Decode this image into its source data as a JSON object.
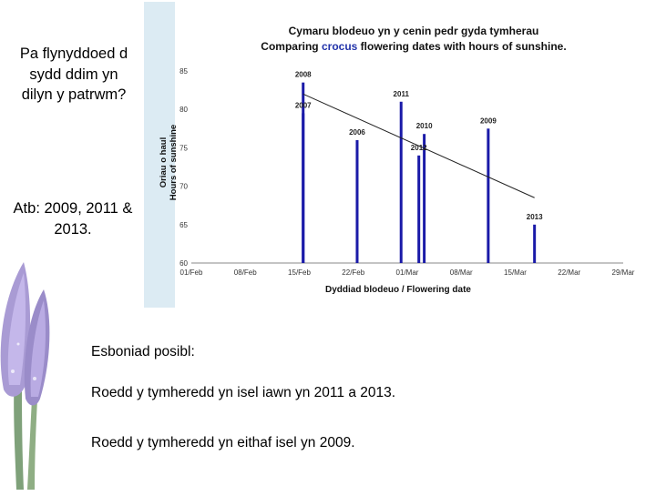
{
  "slide": {
    "question": "Pa flynyddoed d sydd ddim yn dilyn y patrwm?",
    "answer": "Atb: 2009, 2011 & 2013.",
    "explanation_heading": "Esboniad posibl:",
    "explanation_1": "Roedd y tymheredd yn isel iawn yn 2011 a 2013.",
    "explanation_2": "Roedd y tymheredd yn eithaf isel yn 2009."
  },
  "chart_title": {
    "welsh": "Cymaru blodeuo yn y cenin pedr gyda tymherau",
    "english_before": "Comparing ",
    "english_accent": "crocus",
    "english_after": " flowering dates with hours of sunshine."
  },
  "chart_data": {
    "type": "bar",
    "title": "Comparing crocus flowering dates with hours of sunshine.",
    "ylabel": "Oriau o haul Hours of sunshine",
    "ylabel_welsh": "Oriau o haul",
    "ylabel_english": "Hours of sunshine",
    "xlabel": "Dyddiad blodeuo / Flowering date",
    "ylim": [
      60,
      85
    ],
    "yticks": [
      60,
      65,
      70,
      75,
      80,
      85
    ],
    "xlim": [
      0,
      56
    ],
    "xticks": [
      {
        "day": 0,
        "label": "01/Feb"
      },
      {
        "day": 7,
        "label": "08/Feb"
      },
      {
        "day": 14,
        "label": "15/Feb"
      },
      {
        "day": 21,
        "label": "22/Feb"
      },
      {
        "day": 28,
        "label": "01/Mar"
      },
      {
        "day": 35,
        "label": "08/Mar"
      },
      {
        "day": 42,
        "label": "15/Mar"
      },
      {
        "day": 49,
        "label": "22/Mar"
      },
      {
        "day": 56,
        "label": "29/Mar"
      }
    ],
    "bars": [
      {
        "year": "2008",
        "day": 14.5,
        "value": 83.5
      },
      {
        "year": "2007",
        "day": 14.5,
        "value": 79.5
      },
      {
        "year": "2006",
        "day": 21.5,
        "value": 76
      },
      {
        "year": "2011",
        "day": 27.2,
        "value": 81
      },
      {
        "year": "2012",
        "day": 29.5,
        "value": 74
      },
      {
        "year": "2010",
        "day": 30.2,
        "value": 76.8
      },
      {
        "year": "2009",
        "day": 38.5,
        "value": 77.5
      },
      {
        "year": "2013",
        "day": 44.5,
        "value": 65
      }
    ],
    "trendline": {
      "from": [
        14.5,
        82
      ],
      "to": [
        44.5,
        68.5
      ]
    },
    "bar_color": "#1a1aa8"
  }
}
